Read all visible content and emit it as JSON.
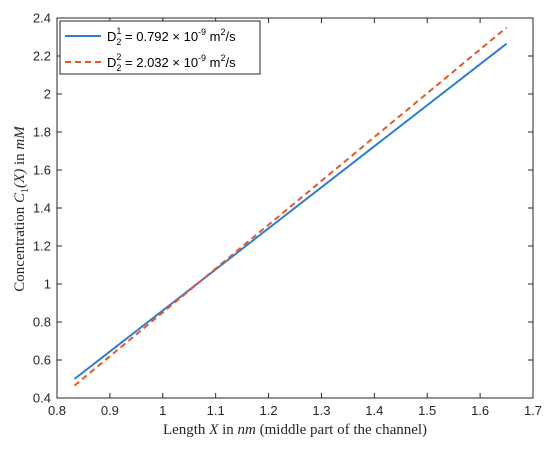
{
  "chart_data": {
    "type": "line",
    "title": "",
    "xlabel": {
      "pre": "Length ",
      "var": "X",
      "mid": " in ",
      "unit": "nm",
      "post": " (middle part of the channel)"
    },
    "ylabel": {
      "pre": "Concentration ",
      "var": "C",
      "sub": "1",
      "args": "(X)",
      "mid": " in ",
      "unit": "mM"
    },
    "xlim": [
      0.8,
      1.7
    ],
    "ylim": [
      0.4,
      2.4
    ],
    "xticks": [
      "0.8",
      "0.9",
      "1",
      "1.1",
      "1.2",
      "1.3",
      "1.4",
      "1.5",
      "1.6",
      "1.7"
    ],
    "yticks": [
      "0.4",
      "0.6",
      "0.8",
      "1",
      "1.2",
      "1.4",
      "1.6",
      "1.8",
      "2",
      "2.2",
      "2.4"
    ],
    "grid": false,
    "legend_position": "top-left",
    "series": [
      {
        "name": "D_2^1 = 0.792 × 10^-9 m^2/s",
        "legend": {
          "base": "D",
          "sub": "2",
          "sup": "1",
          "text": " = 0.792 × 10",
          "exp": "-9",
          "unit": " m",
          "unitexp": "2",
          "tail": "/s"
        },
        "color": "#2f7fd0",
        "style": "solid",
        "x": [
          0.833,
          1.65
        ],
        "y": [
          0.5,
          2.265
        ]
      },
      {
        "name": "D_2^2 = 2.032 × 10^-9 m^2/s",
        "legend": {
          "base": "D",
          "sub": "2",
          "sup": "2",
          "text": " = 2.032  × 10",
          "exp": "-9",
          "unit": " m",
          "unitexp": "2",
          "tail": "/s"
        },
        "color": "#e4582a",
        "style": "dashed",
        "x": [
          0.833,
          1.65
        ],
        "y": [
          0.465,
          2.35
        ]
      }
    ]
  }
}
